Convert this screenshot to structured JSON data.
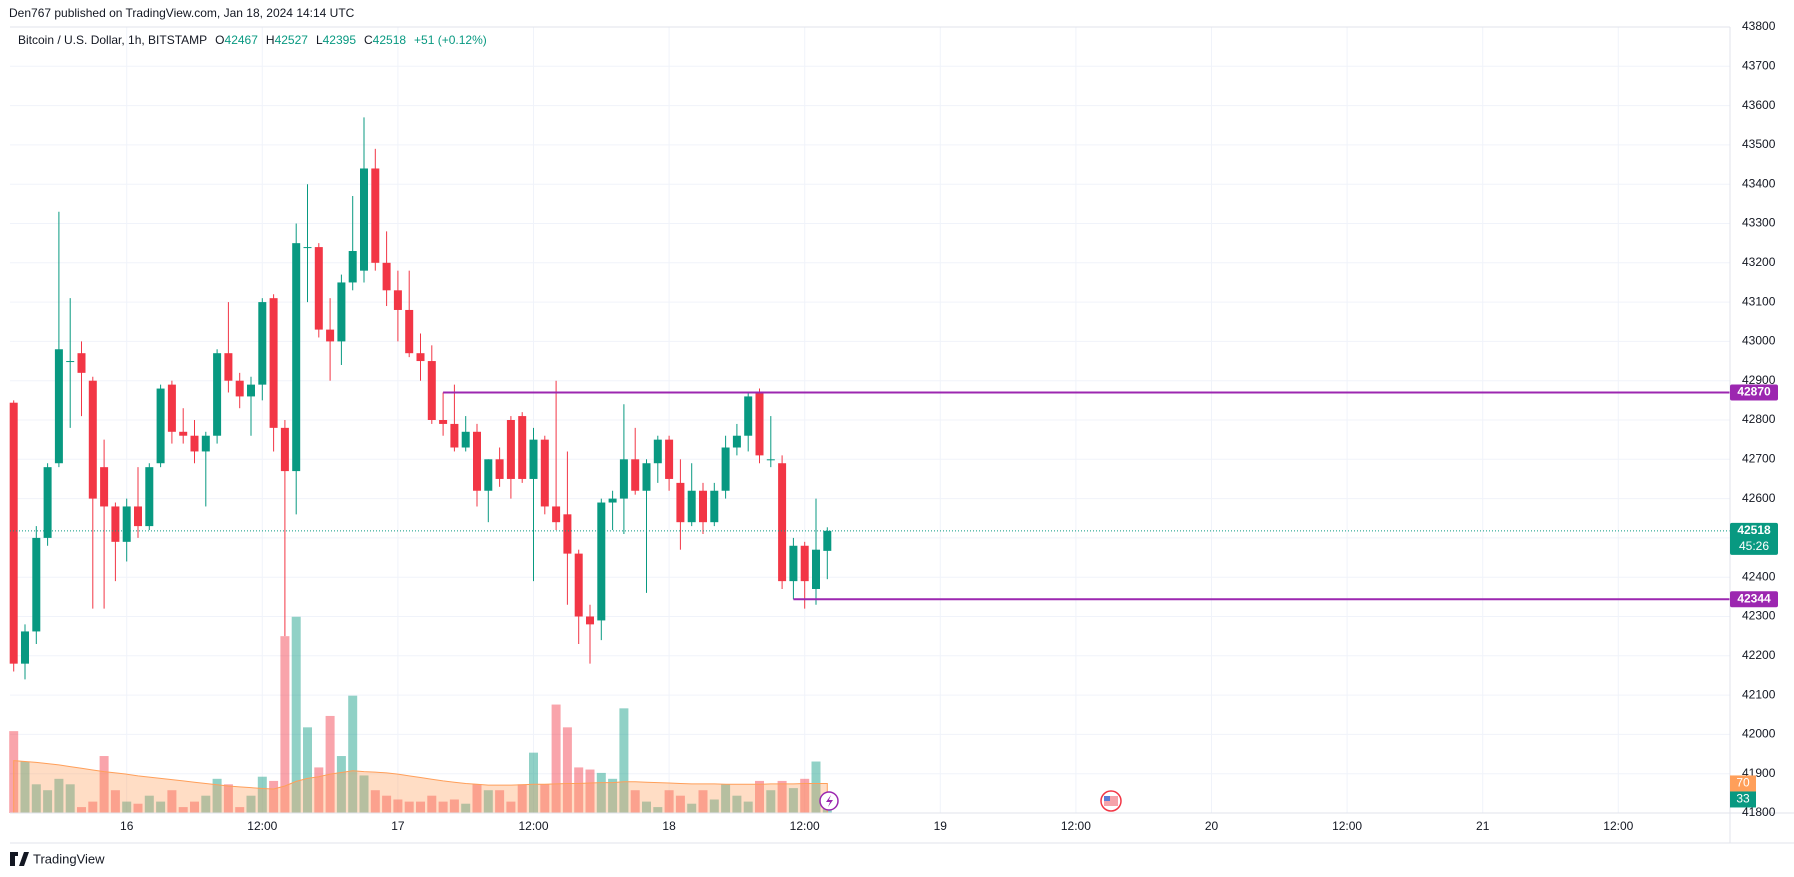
{
  "header": {
    "publisher": "Den767 published on TradingView.com, Jan 18, 2024 14:14 UTC",
    "brand": "TradingView"
  },
  "chart_data": {
    "type": "candlestick",
    "legend": {
      "symbol": "Bitcoin / U.S. Dollar, 1h, BITSTAMP",
      "items": [
        {
          "label": "O",
          "value": 42467
        },
        {
          "label": "H",
          "value": 42527
        },
        {
          "label": "L",
          "value": 42395
        },
        {
          "label": "C",
          "value": 42518
        }
      ],
      "change": "+51 (+0.12%)"
    },
    "categories": [
      null,
      null,
      null,
      null,
      null,
      null,
      null,
      null,
      null,
      null,
      "16",
      null,
      null,
      null,
      null,
      null,
      null,
      null,
      null,
      null,
      null,
      null,
      "12:00",
      null,
      null,
      null,
      null,
      null,
      null,
      null,
      null,
      null,
      null,
      null,
      "17",
      null,
      null,
      null,
      null,
      null,
      null,
      null,
      null,
      null,
      null,
      null,
      "12:00",
      null,
      null,
      null,
      null,
      null,
      null,
      null,
      null,
      null,
      null,
      null,
      "18",
      null,
      null,
      null,
      null,
      null,
      null,
      null,
      null,
      null,
      null,
      null,
      "12:00",
      null,
      null
    ],
    "future_xtick_labels": [
      "19",
      "12:00",
      "20",
      "12:00",
      "21",
      "12:00"
    ],
    "open": [
      42844,
      42180,
      42262,
      42500,
      42690,
      42950,
      42970,
      42900,
      42680,
      42580,
      42490,
      42580,
      42530,
      42690,
      42890,
      42770,
      42760,
      42720,
      42760,
      42970,
      42900,
      42860,
      42890,
      43110,
      42780,
      42670,
      43240,
      43240,
      43030,
      43000,
      43150,
      43180,
      43440,
      43200,
      43130,
      43080,
      42970,
      42950,
      42800,
      42790,
      42730,
      42770,
      42620,
      42700,
      42800,
      42810,
      42650,
      42750,
      42580,
      42560,
      42460,
      42300,
      42290,
      42590,
      42600,
      42700,
      42620,
      42690,
      42750,
      42640,
      42540,
      42620,
      42540,
      42620,
      42730,
      42760,
      42870,
      42700,
      42690,
      42390,
      42480,
      42370,
      42467
    ],
    "high": [
      42850,
      42280,
      42530,
      42690,
      43330,
      43110,
      43000,
      42910,
      42750,
      42590,
      42600,
      42680,
      42690,
      42890,
      42900,
      42830,
      42800,
      42770,
      42980,
      43100,
      42920,
      42910,
      43110,
      43120,
      42800,
      43300,
      43400,
      43250,
      43110,
      43170,
      43370,
      43570,
      43490,
      43280,
      43180,
      43180,
      43020,
      42990,
      42870,
      42890,
      42810,
      42790,
      42700,
      42730,
      42810,
      42820,
      42780,
      42760,
      42900,
      42720,
      42470,
      42330,
      42600,
      42620,
      42840,
      42780,
      42700,
      42760,
      42760,
      42700,
      42690,
      42640,
      42640,
      42760,
      42790,
      42870,
      42880,
      42810,
      42710,
      42500,
      42490,
      42600,
      42527
    ],
    "low": [
      42160,
      42140,
      42230,
      42480,
      42680,
      42780,
      42810,
      42320,
      42320,
      42390,
      42440,
      42500,
      42520,
      42680,
      42740,
      42740,
      42690,
      42580,
      42740,
      42870,
      42830,
      42760,
      42850,
      42720,
      42250,
      42560,
      43100,
      43010,
      42900,
      42940,
      43130,
      43150,
      43180,
      43090,
      43000,
      42960,
      42900,
      42790,
      42760,
      42720,
      42720,
      42580,
      42540,
      42630,
      42600,
      42640,
      42390,
      42560,
      42520,
      42330,
      42230,
      42180,
      42240,
      42520,
      42510,
      42610,
      42360,
      42640,
      42620,
      42470,
      42530,
      42510,
      42530,
      42600,
      42710,
      42720,
      42690,
      42680,
      42370,
      42344,
      42320,
      42330,
      42395
    ],
    "close": [
      42180,
      42262,
      42500,
      42680,
      42980,
      42950,
      42920,
      42600,
      42580,
      42490,
      42580,
      42530,
      42680,
      42880,
      42770,
      42760,
      42720,
      42760,
      42970,
      42900,
      42860,
      42890,
      43100,
      42780,
      42670,
      43250,
      43240,
      43030,
      43000,
      43150,
      43230,
      43440,
      43200,
      43130,
      43080,
      42970,
      42950,
      42800,
      42790,
      42730,
      42770,
      42620,
      42700,
      42650,
      42650,
      42650,
      42750,
      42580,
      42540,
      42460,
      42300,
      42280,
      42590,
      42600,
      42700,
      42620,
      42690,
      42750,
      42650,
      42540,
      42620,
      42540,
      42620,
      42730,
      42760,
      42860,
      42710,
      42700,
      42390,
      42480,
      42390,
      42470,
      42518
    ],
    "volume": [
      194,
      122,
      68,
      54,
      81,
      68,
      14,
      27,
      135,
      54,
      27,
      22,
      41,
      27,
      54,
      14,
      27,
      41,
      81,
      68,
      14,
      41,
      86,
      76,
      419,
      465,
      203,
      108,
      230,
      135,
      278,
      89,
      54,
      41,
      32,
      27,
      27,
      41,
      27,
      32,
      22,
      68,
      54,
      54,
      27,
      68,
      143,
      68,
      257,
      203,
      108,
      103,
      95,
      81,
      248,
      54,
      27,
      14,
      54,
      41,
      22,
      54,
      32,
      68,
      41,
      27,
      76,
      54,
      76,
      59,
      81,
      122,
      33
    ],
    "volume_ma": [
      124,
      122,
      120,
      117,
      114,
      110,
      106,
      102,
      98,
      95,
      92,
      88,
      85,
      82,
      79,
      76,
      73,
      70,
      67,
      64,
      62,
      60,
      58,
      57,
      64,
      75,
      82,
      86,
      92,
      96,
      100,
      98,
      97,
      95,
      92,
      88,
      84,
      80,
      76,
      73,
      70,
      68,
      66,
      66,
      66,
      67,
      68,
      68,
      69,
      70,
      70,
      71,
      72,
      72,
      74,
      74,
      73,
      72,
      71,
      70,
      69,
      69,
      69,
      68,
      68,
      68,
      68,
      69,
      69,
      69,
      70,
      70,
      70
    ],
    "volume_ylim": [
      0,
      500
    ],
    "up_color": "#089981",
    "down_color": "#f23645",
    "level_color": "#9c27b0",
    "ma_color": "#ff9f5a",
    "levels": [
      {
        "value": 42870,
        "kind": "high"
      },
      {
        "value": 42344,
        "kind": "low"
      }
    ],
    "countdown": "45:26",
    "ylim": [
      41800,
      43800
    ],
    "yticks": [
      41800,
      41900,
      42000,
      42100,
      42200,
      42300,
      42400,
      42500,
      42600,
      42700,
      42800,
      42900,
      43000,
      43100,
      43200,
      43300,
      43400,
      43500,
      43600,
      43700,
      43800
    ],
    "grid": true
  }
}
